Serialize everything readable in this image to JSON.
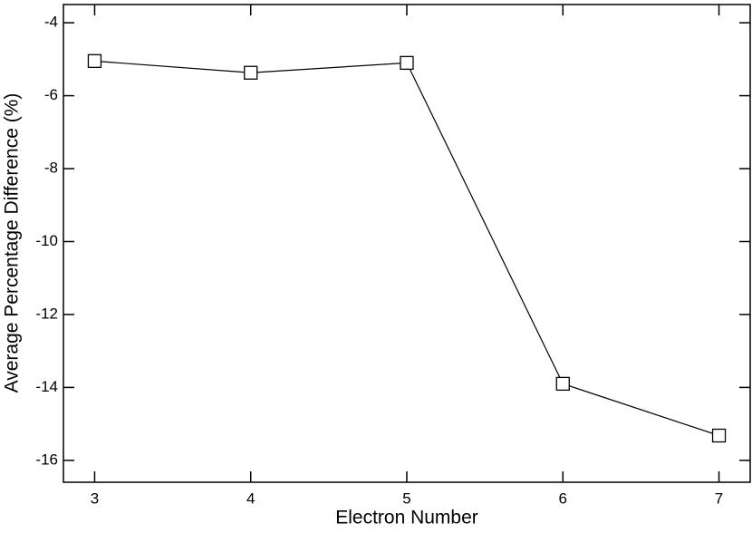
{
  "chart_data": {
    "type": "line",
    "xlabel": "Electron Number",
    "ylabel": "Average Percentage Difference (%)",
    "x": [
      3,
      4,
      5,
      6,
      7
    ],
    "series": [
      {
        "color": "#000000",
        "values": [
          -5.05,
          -5.37,
          -5.1,
          -13.9,
          -15.32
        ]
      }
    ],
    "xlim": [
      2.8,
      7.2
    ],
    "xticks": [
      3,
      4,
      5,
      6,
      7
    ],
    "ylim": [
      -16.6,
      -3.5
    ],
    "yticks": [
      -16,
      -14,
      -12,
      -10,
      -8,
      -6,
      -4
    ],
    "marker": "square"
  }
}
